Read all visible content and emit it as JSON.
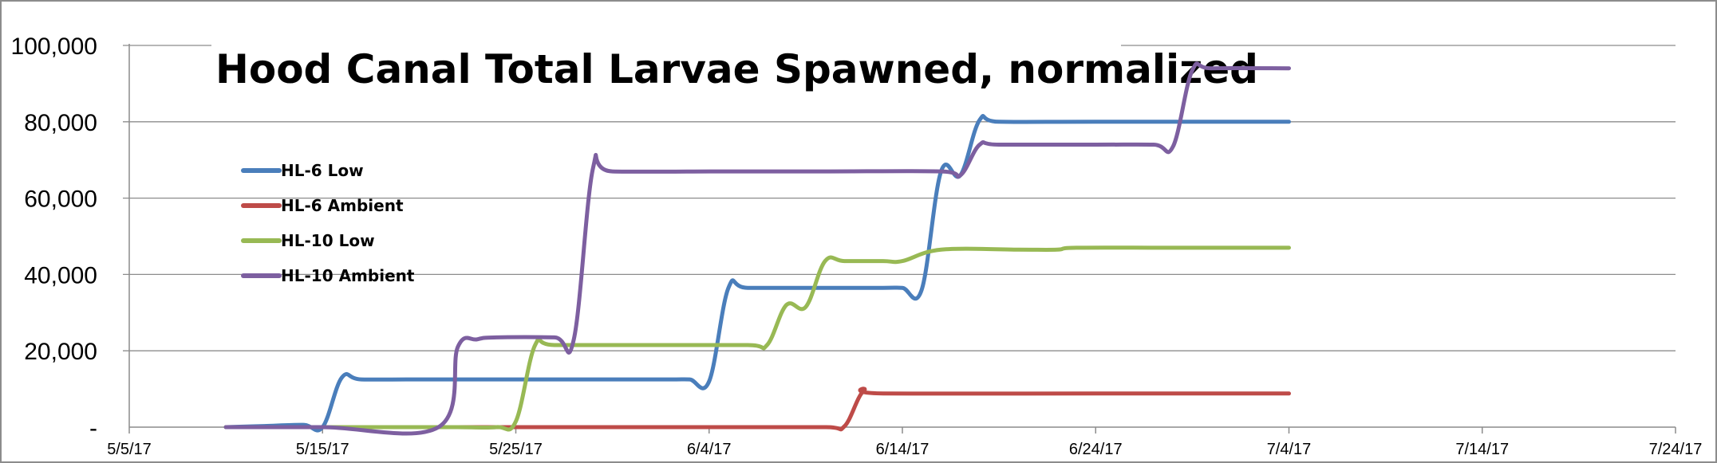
{
  "chart_data": {
    "type": "line",
    "title": "Hood Canal Total Larvae Spawned, normalized",
    "xlabel": "",
    "ylabel": "",
    "x_ticks": [
      "5/5/17",
      "5/15/17",
      "5/25/17",
      "6/4/17",
      "6/14/17",
      "6/24/17",
      "7/4/17",
      "7/14/17",
      "7/24/17"
    ],
    "y_ticks": [
      "-",
      "20,000",
      "40,000",
      "60,000",
      "80,000",
      "100,000"
    ],
    "xlim": [
      "5/5/17",
      "7/24/17"
    ],
    "ylim": [
      0,
      100000
    ],
    "grid": "horizontal",
    "legend_position": "left",
    "series": [
      {
        "name": "HL-6 Low",
        "color": "#4a7ebb",
        "points": [
          [
            "5/10/17",
            0
          ],
          [
            "5/12/17",
            300
          ],
          [
            "5/14/17",
            600
          ],
          [
            "5/15/17",
            0
          ],
          [
            "5/16/17",
            13000
          ],
          [
            "5/17/17",
            12500
          ],
          [
            "5/20/17",
            12500
          ],
          [
            "5/25/17",
            12500
          ],
          [
            "5/30/17",
            12500
          ],
          [
            "6/2/17",
            12500
          ],
          [
            "6/3/17",
            12500
          ],
          [
            "6/4/17",
            12000
          ],
          [
            "6/5/17",
            36500
          ],
          [
            "6/6/17",
            36500
          ],
          [
            "6/10/17",
            36500
          ],
          [
            "6/13/17",
            36500
          ],
          [
            "6/14/17",
            36500
          ],
          [
            "6/15/17",
            36000
          ],
          [
            "6/16/17",
            67000
          ],
          [
            "6/17/17",
            66000
          ],
          [
            "6/18/17",
            80500
          ],
          [
            "6/19/17",
            80000
          ],
          [
            "6/24/17",
            80000
          ],
          [
            "7/4/17",
            80000
          ]
        ]
      },
      {
        "name": "HL-6 Ambient",
        "color": "#be4b48",
        "points": [
          [
            "5/10/17",
            0
          ],
          [
            "5/20/17",
            0
          ],
          [
            "5/30/17",
            0
          ],
          [
            "6/5/17",
            0
          ],
          [
            "6/10/17",
            0
          ],
          [
            "6/11/17",
            200
          ],
          [
            "6/12/17",
            9500
          ],
          [
            "6/13/17",
            8800
          ],
          [
            "6/24/17",
            8800
          ],
          [
            "7/4/17",
            8800
          ]
        ]
      },
      {
        "name": "HL-10 Low",
        "color": "#98b954",
        "points": [
          [
            "5/10/17",
            0
          ],
          [
            "5/20/17",
            0
          ],
          [
            "5/22/17",
            0
          ],
          [
            "5/24/17",
            0
          ],
          [
            "5/25/17",
            1500
          ],
          [
            "5/26/17",
            21500
          ],
          [
            "5/27/17",
            21500
          ],
          [
            "6/1/17",
            21500
          ],
          [
            "6/6/17",
            21500
          ],
          [
            "6/7/17",
            21500
          ],
          [
            "6/8/17",
            32000
          ],
          [
            "6/9/17",
            31500
          ],
          [
            "6/10/17",
            43500
          ],
          [
            "6/11/17",
            43500
          ],
          [
            "6/13/17",
            43500
          ],
          [
            "6/14/17",
            43500
          ],
          [
            "6/16/17",
            46500
          ],
          [
            "6/20/17",
            46500
          ],
          [
            "6/22/17",
            46500
          ],
          [
            "6/23/17",
            47000
          ],
          [
            "6/28/17",
            47000
          ],
          [
            "7/4/17",
            47000
          ]
        ]
      },
      {
        "name": "HL-10 Ambient",
        "color": "#7d5fa0",
        "points": [
          [
            "5/10/17",
            0
          ],
          [
            "5/15/17",
            0
          ],
          [
            "5/21/17",
            0
          ],
          [
            "5/22/17",
            21000
          ],
          [
            "5/23/17",
            23000
          ],
          [
            "5/24/17",
            23500
          ],
          [
            "5/27/17",
            23500
          ],
          [
            "5/28/17",
            23000
          ],
          [
            "5/29/17",
            68000
          ],
          [
            "5/30/17",
            67000
          ],
          [
            "6/5/17",
            67000
          ],
          [
            "6/10/17",
            67000
          ],
          [
            "6/16/17",
            67000
          ],
          [
            "6/17/17",
            66000
          ],
          [
            "6/18/17",
            74000
          ],
          [
            "6/19/17",
            74000
          ],
          [
            "6/24/17",
            74000
          ],
          [
            "6/27/17",
            74000
          ],
          [
            "6/28/17",
            73500
          ],
          [
            "6/29/17",
            93500
          ],
          [
            "6/30/17",
            94000
          ],
          [
            "7/4/17",
            94000
          ]
        ]
      }
    ]
  }
}
